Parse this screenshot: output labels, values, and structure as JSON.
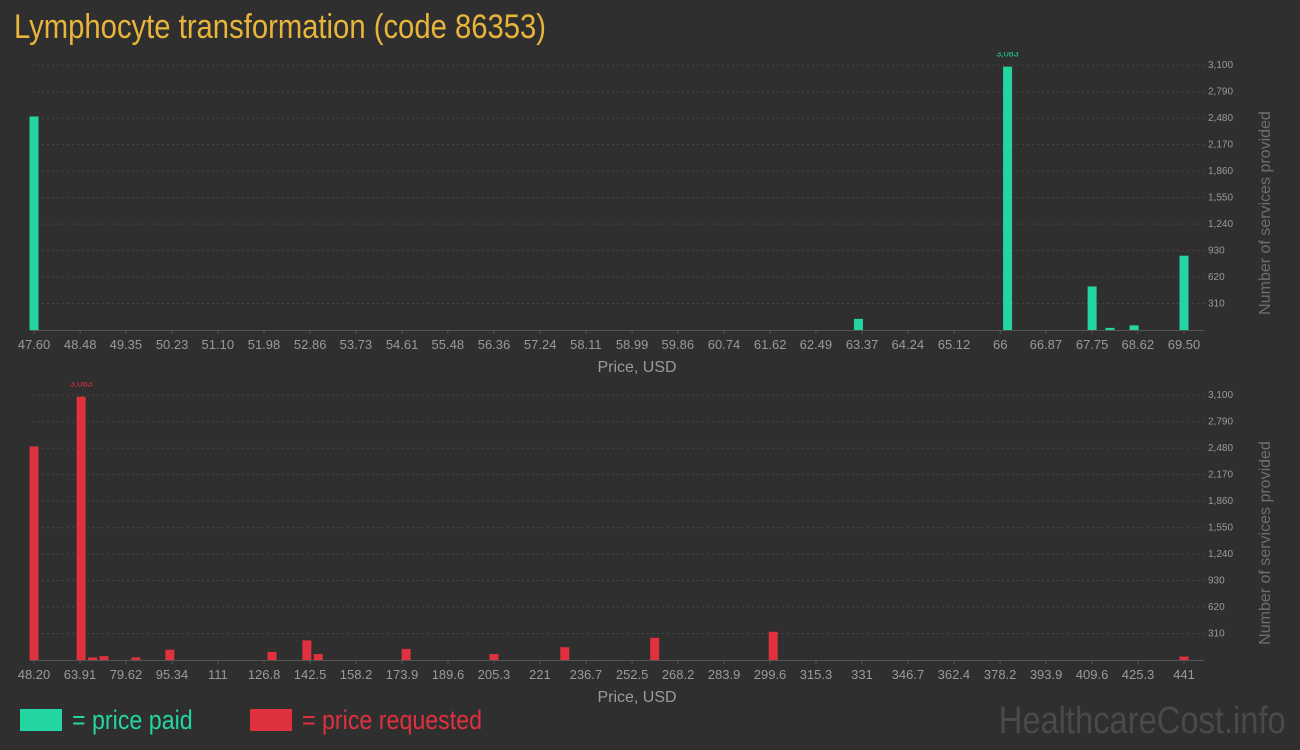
{
  "page": {
    "title": "Lymphocyte transformation (code 86353)",
    "watermark": "HealthcareCost.info"
  },
  "legend": {
    "paid_label": "= price paid",
    "requested_label": "= price requested"
  },
  "colors": {
    "background": "#2f2f2f",
    "title": "#e8b53a",
    "paid": "#23d5a0",
    "requested": "#e0313f",
    "axis_text": "#9a9a9a",
    "grid": "#474747"
  },
  "chart_data": [
    {
      "type": "bar",
      "series_name": "price paid",
      "xlabel": "Price, USD",
      "ylabel": "Number of services provided",
      "ylim": [
        0,
        3255
      ],
      "xlim": [
        47.6,
        69.5
      ],
      "y_ticks": [
        310,
        620,
        930,
        1240,
        1550,
        1860,
        2170,
        2480,
        2790,
        3100
      ],
      "y_tick_labels": [
        "310",
        "620",
        "930",
        "1,240",
        "1,550",
        "1,860",
        "2,170",
        "2,480",
        "2,790",
        "3,100"
      ],
      "x_tick_labels": [
        "47.60",
        "48.48",
        "49.35",
        "50.23",
        "51.10",
        "51.98",
        "52.86",
        "53.73",
        "54.61",
        "55.48",
        "56.36",
        "57.24",
        "58.11",
        "58.99",
        "59.86",
        "60.74",
        "61.62",
        "62.49",
        "63.37",
        "64.24",
        "65.12",
        "66",
        "66.87",
        "67.75",
        "68.62",
        "69.50"
      ],
      "x_tick_values": [
        47.6,
        48.48,
        49.35,
        50.23,
        51.1,
        51.98,
        52.86,
        53.73,
        54.61,
        55.48,
        56.36,
        57.24,
        58.11,
        58.99,
        59.86,
        60.74,
        61.62,
        62.49,
        63.37,
        64.24,
        65.12,
        66.0,
        66.87,
        67.75,
        68.62,
        69.5
      ],
      "bars": [
        {
          "x": 47.6,
          "y": 2500
        },
        {
          "x": 63.3,
          "y": 130
        },
        {
          "x": 66.14,
          "y": 3083,
          "label": "3,083"
        },
        {
          "x": 67.75,
          "y": 510
        },
        {
          "x": 68.09,
          "y": 25
        },
        {
          "x": 68.55,
          "y": 55
        },
        {
          "x": 69.5,
          "y": 870
        }
      ]
    },
    {
      "type": "bar",
      "series_name": "price requested",
      "xlabel": "Price, USD",
      "ylabel": "Number of services provided",
      "ylim": [
        0,
        3255
      ],
      "xlim": [
        48.2,
        441
      ],
      "y_ticks": [
        310,
        620,
        930,
        1240,
        1550,
        1860,
        2170,
        2480,
        2790,
        3100
      ],
      "y_tick_labels": [
        "310",
        "620",
        "930",
        "1,240",
        "1,550",
        "1,860",
        "2,170",
        "2,480",
        "2,790",
        "3,100"
      ],
      "x_tick_labels": [
        "48.20",
        "63.91",
        "79.62",
        "95.34",
        "111",
        "126.8",
        "142.5",
        "158.2",
        "173.9",
        "189.6",
        "205.3",
        "221",
        "236.7",
        "252.5",
        "268.2",
        "283.9",
        "299.6",
        "315.3",
        "331",
        "346.7",
        "362.4",
        "378.2",
        "393.9",
        "409.6",
        "425.3",
        "441"
      ],
      "x_tick_values": [
        48.2,
        63.91,
        79.62,
        95.34,
        111.0,
        126.8,
        142.5,
        158.2,
        173.9,
        189.6,
        205.3,
        221.0,
        236.7,
        252.5,
        268.2,
        283.9,
        299.6,
        315.3,
        331.0,
        346.7,
        362.4,
        378.2,
        393.9,
        409.6,
        425.3,
        441.0
      ],
      "bars": [
        {
          "x": 48.2,
          "y": 2500
        },
        {
          "x": 64.3,
          "y": 3083,
          "label": "3,083"
        },
        {
          "x": 68.2,
          "y": 30
        },
        {
          "x": 72.1,
          "y": 45
        },
        {
          "x": 83.0,
          "y": 30
        },
        {
          "x": 94.6,
          "y": 120
        },
        {
          "x": 129.5,
          "y": 95
        },
        {
          "x": 141.4,
          "y": 230
        },
        {
          "x": 145.3,
          "y": 70
        },
        {
          "x": 175.3,
          "y": 130
        },
        {
          "x": 205.3,
          "y": 70
        },
        {
          "x": 229.5,
          "y": 150
        },
        {
          "x": 260.2,
          "y": 260
        },
        {
          "x": 300.7,
          "y": 330
        },
        {
          "x": 441,
          "y": 40
        }
      ]
    }
  ]
}
